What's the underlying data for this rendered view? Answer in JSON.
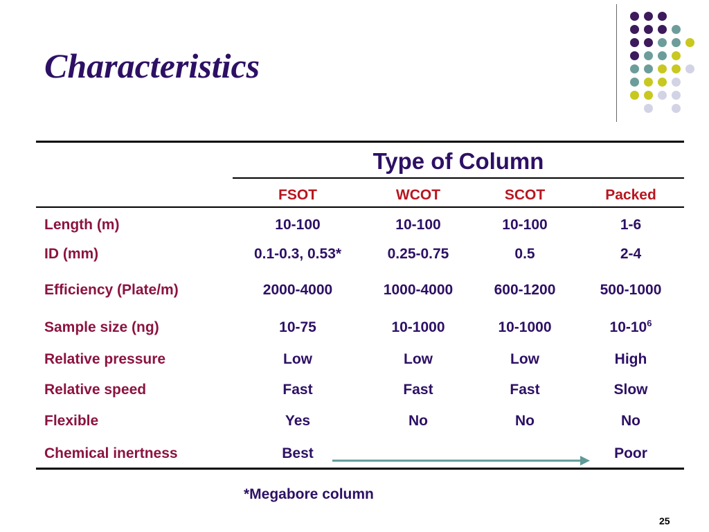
{
  "slide": {
    "title": "Characteristics",
    "page_number": "25",
    "footnote": "*Megabore column"
  },
  "table": {
    "group_header": "Type of Column",
    "columns": [
      "FSOT",
      "WCOT",
      "SCOT",
      "Packed"
    ],
    "rows": [
      {
        "label": "Length (m)",
        "values": [
          "10-100",
          "10-100",
          "10-100",
          "1-6"
        ]
      },
      {
        "label": "ID (mm)",
        "values": [
          "0.1-0.3, 0.53*",
          "0.25-0.75",
          "0.5",
          "2-4"
        ]
      },
      {
        "label": "Efficiency (Plate/m)",
        "values": [
          "2000-4000",
          "1000-4000",
          "600-1200",
          "500-1000"
        ]
      },
      {
        "label": "Sample size (ng)",
        "values": [
          "10-75",
          "10-1000",
          "10-1000"
        ],
        "last_value_base": "10-10",
        "last_value_exponent": "6"
      },
      {
        "label": "Relative pressure",
        "values": [
          "Low",
          "Low",
          "Low",
          "High"
        ]
      },
      {
        "label": "Relative speed",
        "values": [
          "Fast",
          "Fast",
          "Fast",
          "Slow"
        ]
      },
      {
        "label": "Flexible",
        "values": [
          "Yes",
          "No",
          "No",
          "No"
        ]
      },
      {
        "label": "Chemical inertness",
        "values": [
          "Best",
          "",
          "",
          "Poor"
        ]
      }
    ]
  },
  "colors": {
    "title": "#2d1064",
    "row_label": "#8b1340",
    "column_header": "#b8161f",
    "value": "#2d1064",
    "arrow": "#5f9a98",
    "dot_purple": "#3c1a5b",
    "dot_teal": "#6d9d9b",
    "dot_yellow": "#c8c820",
    "dot_lavender": "#d3d3e6"
  }
}
